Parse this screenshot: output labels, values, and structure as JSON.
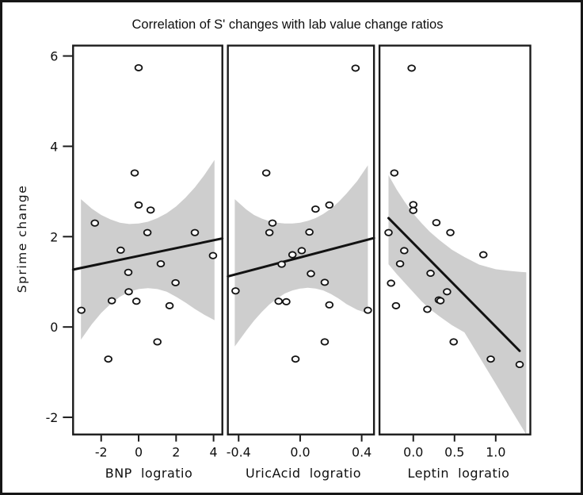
{
  "colors": {
    "band": "#cecece",
    "line": "#121212",
    "frame": "#1a1a1a",
    "point_fill": "#ffffff",
    "background": "#ffffff"
  },
  "chart_data": {
    "type": "scatter",
    "title": "Correlation of S' changes with lab value change ratios",
    "ylabel": "Sprime change",
    "ylim": [
      -2.38,
      6.23
    ],
    "yticks": [
      -2,
      0,
      2,
      4,
      6
    ],
    "ytick_labels": [
      "-2",
      "0",
      "2",
      "4",
      "6"
    ],
    "grid": false,
    "legend": false,
    "panels": [
      {
        "xlabel": "BNP  logratio",
        "xlim": [
          -3.5,
          4.47
        ],
        "xticks": [
          -2,
          0,
          2,
          4
        ],
        "xtick_labels": [
          "-2",
          "0",
          "2",
          "4"
        ],
        "points": [
          [
            0,
            5.74
          ],
          [
            -0.21,
            3.41
          ],
          [
            0,
            2.7
          ],
          [
            0.64,
            2.59
          ],
          [
            -2.34,
            2.3
          ],
          [
            0.47,
            2.09
          ],
          [
            3.0,
            2.09
          ],
          [
            -0.96,
            1.7
          ],
          [
            3.97,
            1.58
          ],
          [
            1.18,
            1.4
          ],
          [
            -0.55,
            1.21
          ],
          [
            1.97,
            0.98
          ],
          [
            -0.53,
            0.78
          ],
          [
            -1.43,
            0.58
          ],
          [
            -0.12,
            0.57
          ],
          [
            1.65,
            0.47
          ],
          [
            -3.06,
            0.37
          ],
          [
            1.0,
            -0.33
          ],
          [
            -1.62,
            -0.71
          ]
        ],
        "fit": {
          "x": [
            -3.5,
            4.47
          ],
          "y": [
            1.27,
            1.96
          ]
        },
        "band": {
          "x": [
            -3.08,
            -2.5,
            -2,
            -1.5,
            -1,
            -0.5,
            0,
            0.5,
            1,
            1.5,
            2,
            2.5,
            3,
            3.5,
            4.05
          ],
          "upper": [
            2.83,
            2.62,
            2.48,
            2.38,
            2.31,
            2.28,
            2.29,
            2.33,
            2.41,
            2.52,
            2.67,
            2.86,
            3.09,
            3.36,
            3.7
          ],
          "lower": [
            -0.28,
            0.06,
            0.31,
            0.51,
            0.67,
            0.78,
            0.84,
            0.86,
            0.84,
            0.78,
            0.67,
            0.54,
            0.4,
            0.27,
            0.15
          ]
        }
      },
      {
        "xlabel": "UricAcid  logratio",
        "xlim": [
          -0.47,
          0.48
        ],
        "xticks": [
          -0.4,
          0.0,
          0.4
        ],
        "xtick_labels": [
          "-0.4",
          "0.0",
          "0.4"
        ],
        "points": [
          [
            0.36,
            5.73
          ],
          [
            -0.22,
            3.41
          ],
          [
            0.19,
            2.7
          ],
          [
            0.1,
            2.61
          ],
          [
            -0.18,
            2.3
          ],
          [
            -0.2,
            2.09
          ],
          [
            0.06,
            2.1
          ],
          [
            0.01,
            1.69
          ],
          [
            -0.05,
            1.6
          ],
          [
            -0.12,
            1.39
          ],
          [
            0.07,
            1.18
          ],
          [
            0.16,
            0.99
          ],
          [
            -0.42,
            0.8
          ],
          [
            -0.14,
            0.57
          ],
          [
            -0.09,
            0.56
          ],
          [
            0.19,
            0.49
          ],
          [
            0.44,
            0.37
          ],
          [
            0.16,
            -0.33
          ],
          [
            -0.03,
            -0.71
          ]
        ],
        "fit": {
          "x": [
            -0.47,
            0.48
          ],
          "y": [
            1.12,
            1.97
          ]
        },
        "band": {
          "x": [
            -0.425,
            -0.35,
            -0.3,
            -0.25,
            -0.2,
            -0.15,
            -0.1,
            -0.05,
            0,
            0.05,
            0.1,
            0.15,
            0.2,
            0.25,
            0.3,
            0.37,
            0.44
          ],
          "upper": [
            2.83,
            2.6,
            2.48,
            2.4,
            2.34,
            2.31,
            2.29,
            2.29,
            2.31,
            2.35,
            2.41,
            2.5,
            2.62,
            2.77,
            2.95,
            3.23,
            3.58
          ],
          "lower": [
            -0.43,
            -0.08,
            0.14,
            0.33,
            0.5,
            0.63,
            0.74,
            0.81,
            0.85,
            0.87,
            0.85,
            0.81,
            0.73,
            0.63,
            0.51,
            0.38,
            0.3
          ]
        }
      },
      {
        "xlabel": "Leptin  logratio",
        "xlim": [
          -0.41,
          1.42
        ],
        "xticks": [
          0.0,
          0.5,
          1.0
        ],
        "xtick_labels": [
          "0.0",
          "0.5",
          "1.0"
        ],
        "points": [
          [
            -0.02,
            5.73
          ],
          [
            -0.23,
            3.41
          ],
          [
            0.0,
            2.71
          ],
          [
            0.0,
            2.58
          ],
          [
            0.28,
            2.31
          ],
          [
            -0.3,
            2.09
          ],
          [
            0.45,
            2.09
          ],
          [
            -0.11,
            1.69
          ],
          [
            0.85,
            1.6
          ],
          [
            -0.16,
            1.4
          ],
          [
            0.21,
            1.19
          ],
          [
            -0.27,
            0.97
          ],
          [
            0.41,
            0.78
          ],
          [
            0.31,
            0.6
          ],
          [
            0.33,
            0.58
          ],
          [
            -0.21,
            0.47
          ],
          [
            0.17,
            0.39
          ],
          [
            0.49,
            -0.33
          ],
          [
            0.94,
            -0.71
          ],
          [
            1.29,
            -0.83
          ]
        ],
        "fit": {
          "x": [
            -0.3,
            1.29
          ],
          "y": [
            2.41,
            -0.53
          ]
        },
        "band": {
          "x": [
            -0.3,
            -0.2,
            -0.1,
            0,
            0.1,
            0.2,
            0.32,
            0.47,
            0.62,
            0.8,
            1.0,
            1.18,
            1.3,
            1.37
          ],
          "upper": [
            3.36,
            3.04,
            2.76,
            2.51,
            2.3,
            2.11,
            1.92,
            1.71,
            1.55,
            1.38,
            1.28,
            1.24,
            1.22,
            1.21
          ],
          "lower": [
            1.39,
            1.17,
            0.97,
            0.77,
            0.57,
            0.4,
            0.23,
            0.04,
            -0.12,
            -0.66,
            -1.26,
            -1.81,
            -2.17,
            -2.38
          ]
        }
      }
    ]
  }
}
